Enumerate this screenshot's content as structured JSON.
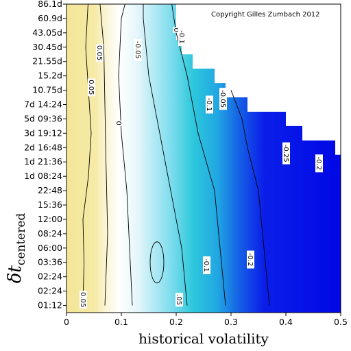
{
  "chart_data": {
    "type": "heatmap",
    "title": "",
    "annotation": "Copyright Gilles Zumbach 2012",
    "xlabel": "historical volatility",
    "ylabel_main": "δt",
    "ylabel_sub": "centered",
    "xlim": [
      0,
      0.5
    ],
    "x_ticks": [
      "0",
      "0.1",
      "0.2",
      "0.3",
      "0.4",
      "0.5"
    ],
    "y_ticks": [
      "01:12",
      "02:24",
      "02:24",
      "03:36",
      "06:00",
      "08:24",
      "12:00",
      "15:36",
      "22:48",
      "1d 08:24",
      "1d 21:36",
      "2d 16:48",
      "3d 19:12",
      "5d 09:36",
      "7d 14:24",
      "10.75d",
      "15.2d",
      "21.55d",
      "30.45d",
      "43.05d",
      "60.9d",
      "86.1d"
    ],
    "colorscale": {
      "positive": "#f4e89a",
      "zero": "#ffffff",
      "mid_negative": "#2ec8dc",
      "negative": "#0008e6"
    },
    "boundary_volatility": [
      0.5,
      0.5,
      0.5,
      0.5,
      0.5,
      0.5,
      0.5,
      0.5,
      0.5,
      0.5,
      0.5,
      0.49,
      0.43,
      0.4,
      0.33,
      0.29,
      0.27,
      0.23,
      0.21,
      0.2,
      0.2,
      0.2
    ],
    "contour_labels": [
      {
        "text": "0.05",
        "x": 0.06,
        "y_index": 17.6
      },
      {
        "text": "0.05",
        "x": 0.045,
        "y_index": 15.2
      },
      {
        "text": "0.05",
        "x": 0.03,
        "y_index": 0.4
      },
      {
        "text": "0",
        "x": 0.095,
        "y_index": 12.7
      },
      {
        "text": "-0.05",
        "x": 0.13,
        "y_index": 17.8
      },
      {
        "text": ".05",
        "x": 0.205,
        "y_index": 0.4
      },
      {
        "text": "-0.1",
        "x": 0.255,
        "y_index": 2.8
      },
      {
        "text": "-0.2",
        "x": 0.335,
        "y_index": 3.2
      },
      {
        "text": "0",
        "x": 0.2,
        "y_index": 19.2
      },
      {
        "text": "-0.1",
        "x": 0.21,
        "y_index": 18.7
      },
      {
        "text": "-0.05",
        "x": 0.285,
        "y_index": 14.4
      },
      {
        "text": "-0.1",
        "x": 0.26,
        "y_index": 14.0
      },
      {
        "text": "-0.25",
        "x": 0.4,
        "y_index": 10.6
      },
      {
        "text": "-0.2",
        "x": 0.46,
        "y_index": 9.9
      }
    ]
  }
}
